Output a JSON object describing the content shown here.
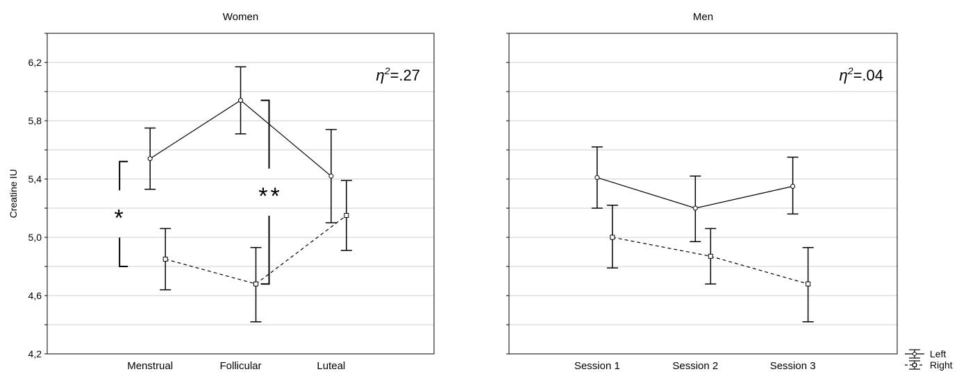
{
  "chart_data": [
    {
      "type": "line",
      "title": "Women",
      "ylabel": "Creatine IU",
      "xlabel": "",
      "categories": [
        "Menstrual",
        "Follicular",
        "Luteal"
      ],
      "ylim": [
        4.2,
        6.4
      ],
      "yticks": [
        4.2,
        4.6,
        5.0,
        5.4,
        5.8,
        6.2
      ],
      "ytick_labels": [
        "4,2",
        "4,6",
        "5,0",
        "5,4",
        "5,8",
        "6,2"
      ],
      "grid": true,
      "effect_size": {
        "symbol": "η",
        "sup": "2",
        "value": "=.27"
      },
      "series": [
        {
          "name": "Left",
          "marker": "circle",
          "linestyle": "solid",
          "values": [
            5.54,
            5.94,
            5.42
          ],
          "err_low": [
            5.33,
            5.71,
            5.1
          ],
          "err_high": [
            5.75,
            6.17,
            5.74
          ]
        },
        {
          "name": "Right",
          "marker": "square",
          "linestyle": "dashed",
          "values": [
            4.85,
            4.68,
            5.15
          ],
          "err_low": [
            4.64,
            4.42,
            4.91
          ],
          "err_high": [
            5.06,
            4.93,
            5.39
          ]
        }
      ],
      "annotations": [
        {
          "label": "*",
          "category_index": 0,
          "y_low": 4.8,
          "y_high": 5.52
        },
        {
          "label": "**",
          "category_index": 1,
          "y_low": 4.68,
          "y_high": 5.94
        }
      ]
    },
    {
      "type": "line",
      "title": "Men",
      "ylabel": "",
      "xlabel": "",
      "categories": [
        "Session 1",
        "Session 2",
        "Session 3"
      ],
      "ylim": [
        4.2,
        6.4
      ],
      "yticks": [
        4.2,
        4.6,
        5.0,
        5.4,
        5.8,
        6.2
      ],
      "grid": true,
      "effect_size": {
        "symbol": "η",
        "sup": "2",
        "value": "=.04"
      },
      "series": [
        {
          "name": "Left",
          "marker": "circle",
          "linestyle": "solid",
          "values": [
            5.41,
            5.2,
            5.35
          ],
          "err_low": [
            5.2,
            4.97,
            5.16
          ],
          "err_high": [
            5.62,
            5.42,
            5.55
          ]
        },
        {
          "name": "Right",
          "marker": "square",
          "linestyle": "dashed",
          "values": [
            5.0,
            4.87,
            4.68
          ],
          "err_low": [
            4.79,
            4.68,
            4.42
          ],
          "err_high": [
            5.22,
            5.06,
            4.93
          ]
        }
      ]
    }
  ],
  "legend": {
    "placement": "bottom-right",
    "entries": [
      {
        "label": "Left",
        "marker": "circle",
        "linestyle": "solid"
      },
      {
        "label": "Right",
        "marker": "square",
        "linestyle": "dashed"
      }
    ]
  }
}
